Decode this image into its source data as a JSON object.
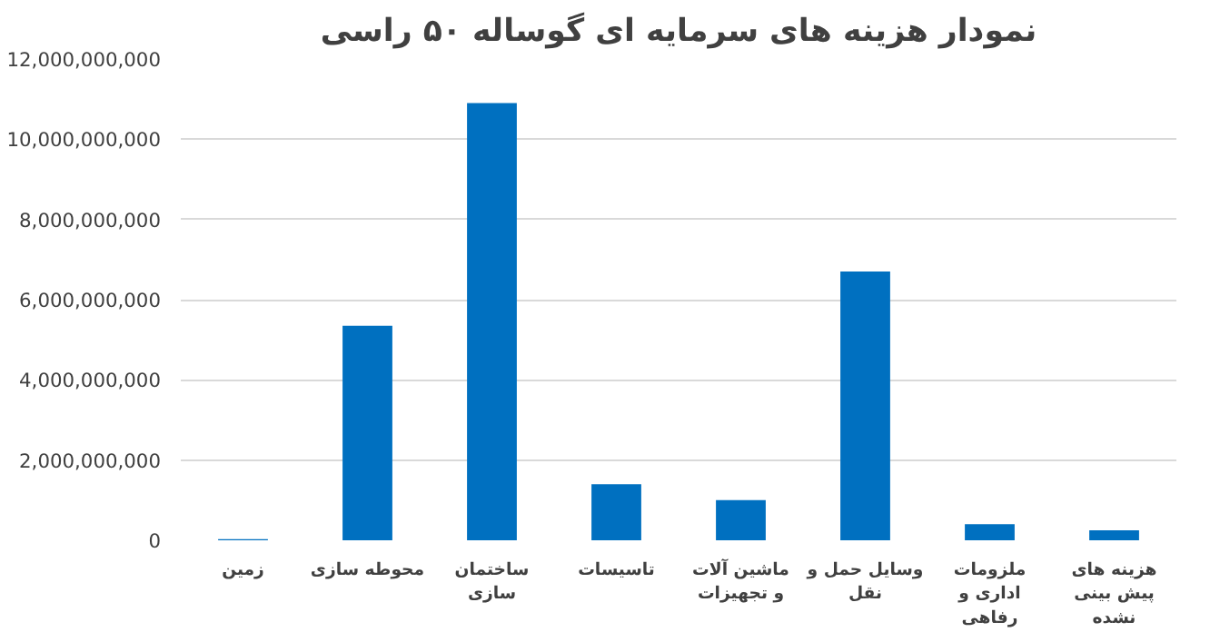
{
  "chart_data": {
    "type": "bar",
    "title": "نمودار هزینه های سرمایه ای گوساله ۵۰ راسی",
    "categories": [
      "زمین",
      "محوطه سازی",
      "ساختمان سازی",
      "تاسیسات",
      "ماشین آلات و تجهیزات",
      "وسایل حمل و نقل",
      "ملزومات اداری و رفاهی",
      "هزینه های پیش بینی نشده"
    ],
    "values": [
      30000000,
      5350000000,
      10900000000,
      1400000000,
      1000000000,
      6700000000,
      400000000,
      250000000
    ],
    "color": "#0070c0",
    "ylim": [
      0,
      12000000000
    ],
    "yticks": [
      {
        "value": 0,
        "label": "0"
      },
      {
        "value": 2000000000,
        "label": "2,000,000,000"
      },
      {
        "value": 4000000000,
        "label": "4,000,000,000"
      },
      {
        "value": 6000000000,
        "label": "6,000,000,000"
      },
      {
        "value": 8000000000,
        "label": "8,000,000,000"
      },
      {
        "value": 10000000000,
        "label": "10,000,000,000"
      },
      {
        "value": 12000000000,
        "label": "12,000,000,000"
      }
    ],
    "grid": "y"
  }
}
